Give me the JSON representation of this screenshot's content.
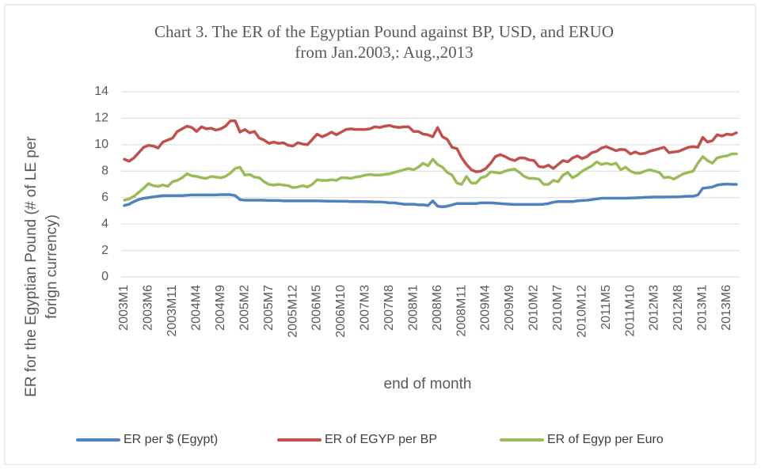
{
  "chart_data": {
    "type": "line",
    "title": [
      "Chart 3. The ER of the Egyptian Pound against BP, USD, and ERUO",
      "from Jan.2003,: Aug.,2013"
    ],
    "xlabel": "end of month",
    "ylabel": [
      "ER for the Egyptian Pound (# of LE per",
      "forign currency)"
    ],
    "categories": [
      "2003M1",
      null,
      null,
      null,
      null,
      "2003M6",
      null,
      null,
      null,
      null,
      "2003M11",
      null,
      null,
      null,
      null,
      "2004M4",
      null,
      null,
      null,
      null,
      "2004M9",
      null,
      null,
      null,
      null,
      "2005M2",
      null,
      null,
      null,
      null,
      "2005M7",
      null,
      null,
      null,
      null,
      "2005M12",
      null,
      null,
      null,
      null,
      "2006M5",
      null,
      null,
      null,
      null,
      "2006M10",
      null,
      null,
      null,
      null,
      "2007M3",
      null,
      null,
      null,
      null,
      "2007M8",
      null,
      null,
      null,
      null,
      "2008M1",
      null,
      null,
      null,
      null,
      "2008M6",
      null,
      null,
      null,
      null,
      "2008M11",
      null,
      null,
      null,
      null,
      "2009M4",
      null,
      null,
      null,
      null,
      "2009M9",
      null,
      null,
      null,
      null,
      "2010M2",
      null,
      null,
      null,
      null,
      "2010M7",
      null,
      null,
      null,
      null,
      "2010M12",
      null,
      null,
      null,
      null,
      "2011M5",
      null,
      null,
      null,
      null,
      "2011M10",
      null,
      null,
      null,
      null,
      "2012M3",
      null,
      null,
      null,
      null,
      "2012M8",
      null,
      null,
      null,
      null,
      "2013M1",
      null,
      null,
      null,
      null,
      "2013M6",
      null,
      null
    ],
    "series": [
      {
        "name": "ER per $ (Egypt)",
        "color": "#4f81bd",
        "values": [
          5.4,
          5.5,
          5.7,
          5.85,
          5.95,
          6.0,
          6.05,
          6.1,
          6.15,
          6.15,
          6.15,
          6.15,
          6.15,
          6.18,
          6.2,
          6.2,
          6.2,
          6.2,
          6.2,
          6.2,
          6.22,
          6.22,
          6.22,
          6.15,
          5.85,
          5.8,
          5.8,
          5.8,
          5.8,
          5.8,
          5.78,
          5.78,
          5.78,
          5.75,
          5.75,
          5.75,
          5.75,
          5.75,
          5.75,
          5.75,
          5.75,
          5.74,
          5.73,
          5.73,
          5.72,
          5.72,
          5.72,
          5.7,
          5.7,
          5.7,
          5.69,
          5.68,
          5.67,
          5.67,
          5.65,
          5.6,
          5.6,
          5.55,
          5.5,
          5.5,
          5.5,
          5.45,
          5.45,
          5.4,
          5.75,
          5.35,
          5.3,
          5.35,
          5.45,
          5.55,
          5.55,
          5.55,
          5.55,
          5.55,
          5.6,
          5.6,
          5.6,
          5.58,
          5.55,
          5.52,
          5.5,
          5.48,
          5.48,
          5.48,
          5.48,
          5.48,
          5.48,
          5.5,
          5.55,
          5.65,
          5.7,
          5.7,
          5.7,
          5.7,
          5.75,
          5.78,
          5.8,
          5.85,
          5.9,
          5.95,
          5.95,
          5.95,
          5.95,
          5.95,
          5.95,
          5.97,
          5.98,
          6.0,
          6.02,
          6.03,
          6.04,
          6.04,
          6.04,
          6.05,
          6.05,
          6.06,
          6.08,
          6.1,
          6.1,
          6.2,
          6.7,
          6.75,
          6.8,
          6.95,
          7.0,
          7.02,
          7.0,
          7.0
        ]
      },
      {
        "name": "ER of EGYP per BP",
        "color": "#c0504d",
        "values": [
          8.9,
          8.75,
          9.0,
          9.4,
          9.8,
          9.95,
          9.9,
          9.75,
          10.2,
          10.35,
          10.5,
          11.0,
          11.2,
          11.4,
          11.3,
          11.0,
          11.35,
          11.2,
          11.25,
          11.1,
          11.2,
          11.4,
          11.8,
          11.8,
          10.95,
          11.15,
          10.9,
          11.0,
          10.5,
          10.35,
          10.1,
          10.2,
          10.1,
          10.15,
          9.95,
          9.9,
          10.15,
          10.05,
          10.0,
          10.4,
          10.8,
          10.6,
          10.75,
          10.95,
          10.75,
          10.95,
          11.15,
          11.2,
          11.15,
          11.15,
          11.15,
          11.2,
          11.35,
          11.3,
          11.4,
          11.45,
          11.35,
          11.3,
          11.35,
          11.35,
          11.0,
          11.0,
          10.8,
          10.75,
          10.6,
          11.3,
          10.6,
          10.4,
          9.8,
          9.7,
          9.0,
          8.5,
          8.1,
          7.95,
          8.0,
          8.2,
          8.6,
          9.1,
          9.25,
          9.1,
          8.9,
          8.8,
          9.0,
          9.0,
          8.85,
          8.8,
          8.35,
          8.3,
          8.45,
          8.2,
          8.5,
          8.8,
          8.7,
          9.0,
          9.15,
          8.95,
          9.1,
          9.4,
          9.5,
          9.75,
          9.85,
          9.7,
          9.55,
          9.65,
          9.6,
          9.3,
          9.45,
          9.3,
          9.35,
          9.5,
          9.6,
          9.7,
          9.8,
          9.4,
          9.45,
          9.5,
          9.65,
          9.8,
          9.85,
          9.8,
          10.55,
          10.2,
          10.3,
          10.75,
          10.65,
          10.8,
          10.75,
          10.9
        ]
      },
      {
        "name": "ER of Egyp per Euro",
        "color": "#9bbb59",
        "values": [
          5.8,
          5.9,
          6.1,
          6.4,
          6.7,
          7.05,
          6.9,
          6.85,
          6.95,
          6.85,
          7.2,
          7.3,
          7.5,
          7.8,
          7.65,
          7.6,
          7.5,
          7.45,
          7.6,
          7.55,
          7.5,
          7.6,
          7.85,
          8.2,
          8.3,
          7.7,
          7.75,
          7.55,
          7.5,
          7.2,
          7.0,
          6.95,
          7.0,
          6.95,
          6.9,
          6.75,
          6.8,
          6.9,
          6.8,
          7.0,
          7.35,
          7.3,
          7.3,
          7.35,
          7.3,
          7.5,
          7.5,
          7.45,
          7.55,
          7.6,
          7.7,
          7.75,
          7.7,
          7.7,
          7.75,
          7.8,
          7.9,
          8.0,
          8.1,
          8.2,
          8.1,
          8.3,
          8.6,
          8.4,
          8.9,
          8.5,
          8.3,
          7.9,
          7.7,
          7.1,
          7.0,
          7.6,
          7.1,
          7.1,
          7.5,
          7.6,
          7.95,
          7.9,
          7.85,
          8.0,
          8.1,
          8.15,
          7.9,
          7.6,
          7.45,
          7.45,
          7.4,
          7.0,
          7.0,
          7.3,
          7.2,
          7.7,
          7.9,
          7.5,
          7.7,
          8.0,
          8.2,
          8.4,
          8.7,
          8.5,
          8.6,
          8.5,
          8.6,
          8.1,
          8.3,
          8.0,
          7.85,
          7.85,
          8.0,
          8.1,
          8.0,
          7.9,
          7.5,
          7.55,
          7.4,
          7.6,
          7.8,
          7.9,
          8.0,
          8.6,
          9.1,
          8.8,
          8.6,
          9.0,
          9.1,
          9.15,
          9.3,
          9.3
        ]
      }
    ],
    "ylim": [
      0,
      14
    ],
    "yticks": [
      0,
      2,
      4,
      6,
      8,
      10,
      12,
      14
    ],
    "grid": true,
    "legend": "bottom"
  }
}
